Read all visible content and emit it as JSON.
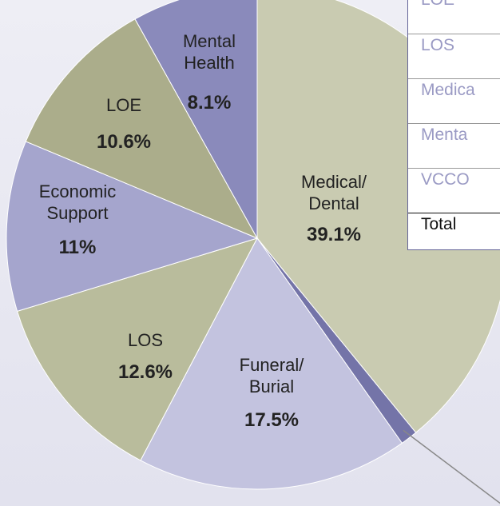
{
  "chart_data": {
    "type": "pie",
    "categories": [
      "Medical/\nDental",
      null,
      "Funeral/\nBurial",
      "LOS",
      "Economic\nSupport",
      "LOE",
      "Mental\nHealth"
    ],
    "values": [
      39.1,
      1.1,
      17.5,
      12.6,
      11,
      10.6,
      8.1
    ],
    "value_labels": [
      "39.1%",
      null,
      "17.5%",
      "12.6%",
      "11%",
      "10.6%",
      "8.1%"
    ],
    "colors": [
      "#c9cbb1",
      "#7474a8",
      "#c3c3df",
      "#b9bc9c",
      "#a5a5cd",
      "#abad8b",
      "#8a8abb"
    ]
  },
  "table": {
    "rows": [
      "LOE",
      "LOS",
      "Medica",
      "Menta",
      "VCCO",
      "Total"
    ]
  }
}
